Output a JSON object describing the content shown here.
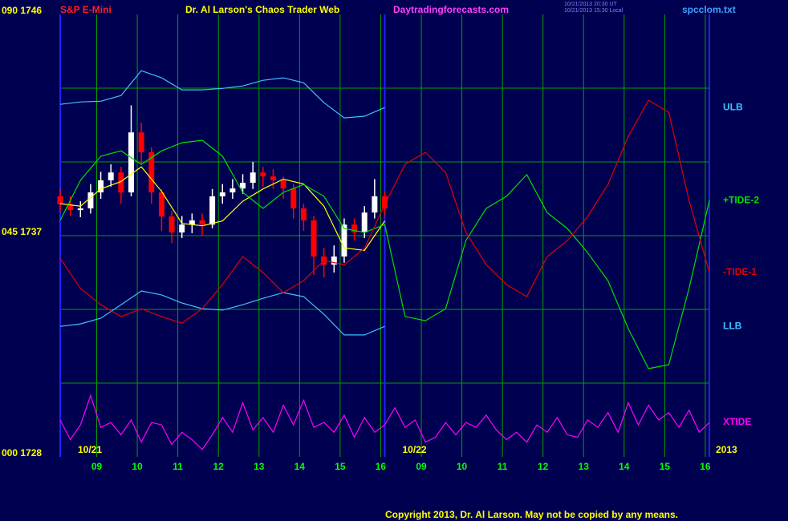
{
  "chart_data": {
    "type": "line",
    "title": "Dr. Al Larson's Chaos Trader Web",
    "instrument": "S&P E-Mini",
    "website": "Daytradingforecasts.com",
    "timestamp_ut": "10/21/2013 20:30 UT",
    "timestamp_local": "10/21/2013 15:30 Local",
    "file_name": "spcclom.txt",
    "copyright": "Copyright 2013, Dr. Al Larson. May not be copied by any means.",
    "year_label": "2013",
    "background_color": "#000050",
    "grid_color": "#00a000",
    "frame_color": "#2020ff",
    "xlim": [
      0,
      16
    ],
    "ylim": [
      1728,
      1746
    ],
    "xticks": [
      {
        "value": 0.9,
        "label": "09"
      },
      {
        "value": 1.9,
        "label": "10"
      },
      {
        "value": 2.9,
        "label": "11"
      },
      {
        "value": 3.9,
        "label": "12"
      },
      {
        "value": 4.9,
        "label": "13"
      },
      {
        "value": 5.9,
        "label": "14"
      },
      {
        "value": 6.9,
        "label": "15"
      },
      {
        "value": 7.9,
        "label": "16"
      },
      {
        "value": 8.9,
        "label": "09"
      },
      {
        "value": 9.9,
        "label": "10"
      },
      {
        "value": 10.9,
        "label": "11"
      },
      {
        "value": 11.9,
        "label": "12"
      },
      {
        "value": 12.9,
        "label": "13"
      },
      {
        "value": 13.9,
        "label": "14"
      },
      {
        "value": 14.9,
        "label": "15"
      },
      {
        "value": 15.9,
        "label": "16"
      }
    ],
    "days": [
      {
        "value": 0,
        "label": "10/21"
      },
      {
        "value": 8,
        "label": "10/22"
      }
    ],
    "yticks": [
      {
        "value": 1746,
        "label": "090 1746"
      },
      {
        "value": 1737,
        "label": "045 1737"
      },
      {
        "value": 1728,
        "label": "000 1728"
      }
    ],
    "ygrid": [
      1731,
      1734,
      1737,
      1740,
      1743
    ],
    "grid": true,
    "candles": {
      "up_color": "#ffffff",
      "down_color": "#ff0000",
      "x": [
        0,
        0.25,
        0.5,
        0.75,
        1,
        1.25,
        1.5,
        1.75,
        2,
        2.25,
        2.5,
        2.75,
        3,
        3.25,
        3.5,
        3.75,
        4,
        4.25,
        4.5,
        4.75,
        5,
        5.25,
        5.5,
        5.75,
        6,
        6.25,
        6.5,
        6.75,
        7,
        7.25,
        7.5,
        7.75,
        8
      ],
      "open": [
        1738.6,
        1738.27,
        1738.04,
        1738.11,
        1738.76,
        1739.25,
        1739.57,
        1738.76,
        1741.2,
        1740.39,
        1738.76,
        1737.78,
        1737.13,
        1737.45,
        1737.62,
        1737.45,
        1738.6,
        1738.76,
        1738.92,
        1739.15,
        1739.57,
        1739.41,
        1739.25,
        1738.92,
        1738.11,
        1737.62,
        1736.15,
        1735.82,
        1736.15,
        1737.45,
        1737.13,
        1737.94,
        1738.6
      ],
      "high": [
        1738.9,
        1738.6,
        1738.4,
        1739.1,
        1739.6,
        1739.9,
        1739.8,
        1742.3,
        1741.6,
        1740.6,
        1738.9,
        1738.0,
        1737.8,
        1737.9,
        1737.9,
        1738.9,
        1739.1,
        1739.3,
        1739.5,
        1740.0,
        1739.8,
        1739.7,
        1739.4,
        1739.1,
        1738.3,
        1737.8,
        1736.5,
        1736.6,
        1737.7,
        1737.7,
        1738.2,
        1739.3,
        1738.8
      ],
      "low": [
        1737.95,
        1737.8,
        1737.75,
        1737.9,
        1738.5,
        1739.0,
        1738.3,
        1738.6,
        1739.9,
        1738.3,
        1737.2,
        1736.7,
        1736.9,
        1737.1,
        1737.0,
        1737.3,
        1738.3,
        1738.5,
        1738.7,
        1738.9,
        1739.0,
        1738.9,
        1738.5,
        1737.7,
        1737.2,
        1735.4,
        1735.3,
        1735.5,
        1735.9,
        1736.8,
        1736.9,
        1737.7,
        1737.8
      ],
      "close": [
        1738.27,
        1738.04,
        1738.11,
        1738.76,
        1739.25,
        1739.57,
        1738.76,
        1741.2,
        1740.39,
        1738.76,
        1737.78,
        1737.13,
        1737.45,
        1737.62,
        1737.45,
        1738.6,
        1738.76,
        1738.92,
        1739.15,
        1739.57,
        1739.41,
        1739.25,
        1738.92,
        1738.11,
        1737.62,
        1736.15,
        1735.82,
        1736.15,
        1737.45,
        1737.13,
        1737.94,
        1738.6,
        1738.11
      ]
    },
    "series": [
      {
        "name": "ULB",
        "color": "#40c0ff",
        "x": [
          0,
          0.5,
          1,
          1.5,
          2,
          2.5,
          3,
          3.5,
          4,
          4.5,
          5,
          5.5,
          6,
          6.5,
          7,
          7.5,
          8
        ],
        "values": [
          1742.34,
          1742.44,
          1742.47,
          1742.7,
          1743.71,
          1743.42,
          1742.93,
          1742.93,
          1742.99,
          1743.09,
          1743.32,
          1743.42,
          1743.22,
          1742.41,
          1741.79,
          1741.86,
          1742.21
        ]
      },
      {
        "name": "LLB",
        "color": "#40c0ff",
        "x": [
          0,
          0.5,
          1,
          1.5,
          2,
          2.5,
          3,
          3.5,
          4,
          4.5,
          5,
          5.5,
          6,
          6.5,
          7,
          7.5,
          8
        ],
        "values": [
          1733.31,
          1733.41,
          1733.64,
          1734.19,
          1734.75,
          1734.59,
          1734.26,
          1734.03,
          1733.97,
          1734.19,
          1734.45,
          1734.68,
          1734.52,
          1733.8,
          1732.96,
          1732.96,
          1733.31
        ]
      },
      {
        "color": "#ffff00",
        "x": [
          0,
          0.5,
          1,
          1.5,
          2,
          2.5,
          3,
          3.5,
          4,
          4.5,
          5,
          5.5,
          6,
          6.5,
          7,
          7.5,
          8
        ],
        "values": [
          1738.3,
          1738.2,
          1738.9,
          1739.2,
          1739.8,
          1738.8,
          1737.5,
          1737.4,
          1737.6,
          1738.4,
          1738.9,
          1739.3,
          1739.1,
          1738.2,
          1736.5,
          1736.4,
          1737.6
        ]
      },
      {
        "name": "+TIDE-2",
        "color": "#00e000",
        "x": [
          0,
          0.5,
          1,
          1.5,
          2,
          2.5,
          3,
          3.5,
          4,
          4.5,
          5,
          5.5,
          6,
          6.5,
          7,
          7.5,
          8,
          8.5,
          9,
          9.5,
          10,
          10.5,
          11,
          11.5,
          12,
          12.5,
          13,
          13.5,
          14,
          14.5,
          15,
          15.5,
          16
        ],
        "values": [
          1737.62,
          1739.25,
          1740.23,
          1740.45,
          1739.9,
          1740.45,
          1740.78,
          1740.88,
          1740.23,
          1738.76,
          1738.11,
          1738.76,
          1739.08,
          1738.6,
          1737.29,
          1737.13,
          1737.45,
          1733.71,
          1733.54,
          1734.03,
          1736.8,
          1738.11,
          1738.6,
          1739.48,
          1737.94,
          1737.29,
          1736.31,
          1735.17,
          1733.22,
          1731.59,
          1731.75,
          1734.85,
          1738.43
        ]
      },
      {
        "name": "-TIDE-1",
        "color": "#e00000",
        "x": [
          0,
          0.5,
          1,
          1.5,
          2,
          2.5,
          3,
          3.5,
          4,
          4.5,
          5,
          5.5,
          6,
          6.5,
          7,
          7.5,
          8,
          8.5,
          9,
          9.5,
          10,
          10.5,
          11,
          11.5,
          12,
          12.5,
          13,
          13.5,
          14,
          14.5,
          15,
          15.5,
          16
        ],
        "values": [
          1736.08,
          1734.85,
          1734.19,
          1733.71,
          1734.03,
          1733.71,
          1733.44,
          1734.03,
          1735.01,
          1736.15,
          1735.5,
          1734.68,
          1735.17,
          1735.99,
          1735.82,
          1736.48,
          1738.27,
          1739.9,
          1740.39,
          1739.57,
          1737.13,
          1735.82,
          1735.01,
          1734.52,
          1736.15,
          1736.8,
          1737.78,
          1739.08,
          1741.04,
          1742.51,
          1742.02,
          1738.43,
          1735.5
        ]
      },
      {
        "name": "XTIDE",
        "color": "#ff00ff",
        "x": [
          0,
          0.25,
          0.5,
          0.75,
          1,
          1.25,
          1.5,
          1.75,
          2,
          2.25,
          2.5,
          2.75,
          3,
          3.25,
          3.5,
          3.75,
          4,
          4.25,
          4.5,
          4.75,
          5,
          5.25,
          5.5,
          5.75,
          6,
          6.25,
          6.5,
          6.75,
          7,
          7.25,
          7.5,
          7.75,
          8,
          8.25,
          8.5,
          8.75,
          9,
          9.25,
          9.5,
          9.75,
          10,
          10.25,
          10.5,
          10.75,
          11,
          11.25,
          11.5,
          11.75,
          12,
          12.25,
          12.5,
          12.75,
          13,
          13.25,
          13.5,
          13.75,
          14,
          14.25,
          14.5,
          14.75,
          15,
          15.25,
          15.5,
          15.75,
          16
        ],
        "values": [
          1729.5,
          1728.7,
          1729.3,
          1730.5,
          1729.2,
          1729.4,
          1728.9,
          1729.5,
          1728.6,
          1729.4,
          1729.3,
          1728.5,
          1729.0,
          1728.7,
          1728.3,
          1728.9,
          1729.6,
          1729.0,
          1730.2,
          1729.1,
          1729.6,
          1729.0,
          1730.1,
          1729.3,
          1730.3,
          1729.2,
          1729.4,
          1729.0,
          1729.7,
          1728.8,
          1729.6,
          1729.0,
          1729.3,
          1730.0,
          1729.2,
          1729.5,
          1728.6,
          1728.8,
          1729.4,
          1728.9,
          1729.4,
          1729.2,
          1729.7,
          1729.1,
          1728.7,
          1729.0,
          1728.6,
          1729.3,
          1729.0,
          1729.6,
          1728.9,
          1728.8,
          1729.5,
          1729.2,
          1729.8,
          1729.0,
          1730.2,
          1729.3,
          1730.1,
          1729.5,
          1729.8,
          1729.2,
          1729.9,
          1729.0,
          1729.4
        ]
      }
    ]
  }
}
